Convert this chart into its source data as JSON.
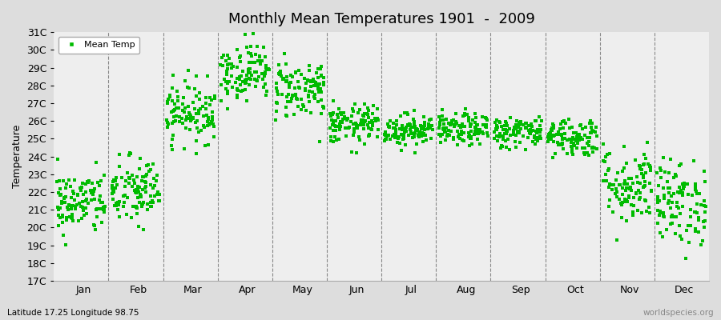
{
  "title": "Monthly Mean Temperatures 1901  -  2009",
  "ylabel": "Temperature",
  "xlabel_labels": [
    "Jan",
    "Feb",
    "Mar",
    "Apr",
    "May",
    "Jun",
    "Jul",
    "Aug",
    "Sep",
    "Oct",
    "Nov",
    "Dec"
  ],
  "bottom_left_label": "Latitude 17.25 Longitude 98.75",
  "bottom_right_label": "worldspecies.org",
  "legend_label": "Mean Temp",
  "dot_color": "#00bb00",
  "dot_size": 6,
  "ylim": [
    17,
    31
  ],
  "ytick_labels": [
    "17C",
    "18C",
    "19C",
    "20C",
    "21C",
    "22C",
    "23C",
    "24C",
    "25C",
    "26C",
    "27C",
    "28C",
    "29C",
    "30C",
    "31C"
  ],
  "ytick_values": [
    17,
    18,
    19,
    20,
    21,
    22,
    23,
    24,
    25,
    26,
    27,
    28,
    29,
    30,
    31
  ],
  "bg_color": "#dddddd",
  "plot_bg_color": "#eeeeee",
  "grid_color": "#888888",
  "n_years": 109,
  "monthly_means": [
    21.4,
    22.0,
    26.5,
    28.8,
    27.8,
    25.8,
    25.5,
    25.5,
    25.4,
    25.1,
    22.4,
    21.4
  ],
  "monthly_stds": [
    0.9,
    1.0,
    0.85,
    0.8,
    0.85,
    0.55,
    0.45,
    0.45,
    0.45,
    0.55,
    1.1,
    1.2
  ]
}
